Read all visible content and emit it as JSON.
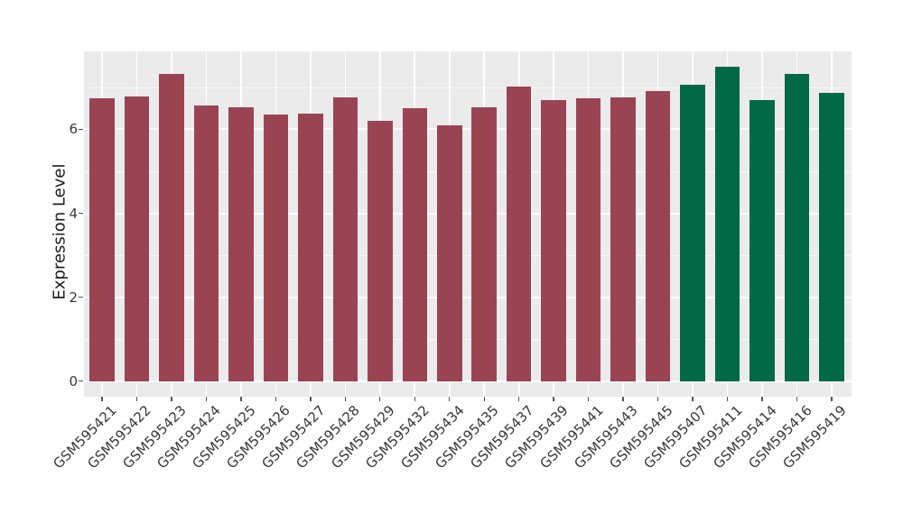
{
  "chart_data": {
    "type": "bar",
    "ylabel": "Expression Level",
    "xlabel": "",
    "ylim": [
      0,
      7.86
    ],
    "yticks": [
      0,
      2,
      4,
      6
    ],
    "minor_yticks": [
      1,
      3,
      5,
      7
    ],
    "grid": "on",
    "legend_position": "none",
    "categories": [
      "GSM595421",
      "GSM595422",
      "GSM595423",
      "GSM595424",
      "GSM595425",
      "GSM595426",
      "GSM595427",
      "GSM595428",
      "GSM595429",
      "GSM595432",
      "GSM595434",
      "GSM595435",
      "GSM595437",
      "GSM595439",
      "GSM595441",
      "GSM595443",
      "GSM595445",
      "GSM595407",
      "GSM595411",
      "GSM595414",
      "GSM595416",
      "GSM595419"
    ],
    "values": [
      6.73,
      6.79,
      7.32,
      6.57,
      6.52,
      6.35,
      6.37,
      6.76,
      6.2,
      6.5,
      6.09,
      6.52,
      7.02,
      6.7,
      6.73,
      6.77,
      6.91,
      7.07,
      7.49,
      6.7,
      7.32,
      6.86
    ],
    "bar_colors": [
      "#9A4453",
      "#9A4453",
      "#9A4453",
      "#9A4453",
      "#9A4453",
      "#9A4453",
      "#9A4453",
      "#9A4453",
      "#9A4453",
      "#9A4453",
      "#9A4453",
      "#9A4453",
      "#9A4453",
      "#9A4453",
      "#9A4453",
      "#9A4453",
      "#9A4453",
      "#016946",
      "#016946",
      "#016946",
      "#016946",
      "#016946"
    ],
    "palette": {
      "maroon_group": "#9A4453",
      "green_group": "#016946"
    },
    "panel_bg": "#EBEBEB",
    "grid_color": "#FFFFFF",
    "tick_color": "#555555",
    "tick_label_color": "#383838",
    "axis_title_color": "#1C1C1C"
  }
}
